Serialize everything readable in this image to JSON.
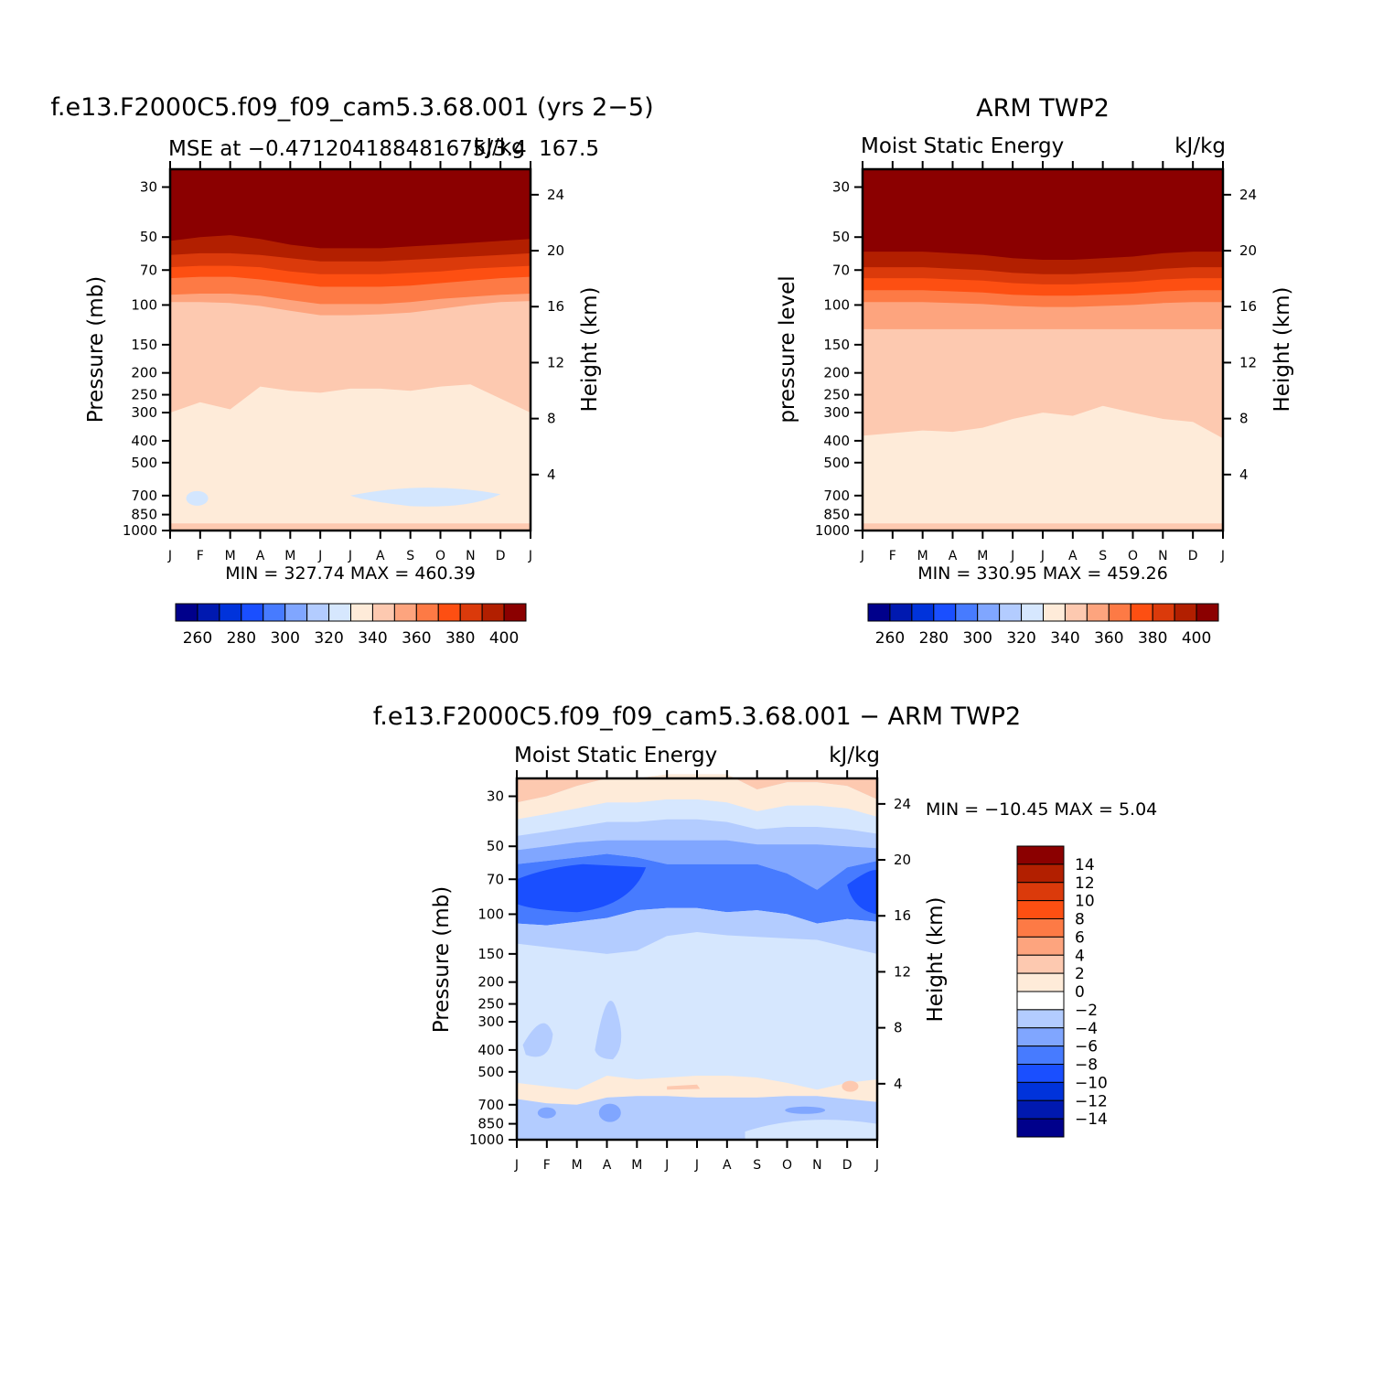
{
  "chart_data": [
    {
      "id": "model",
      "type": "heatmap",
      "title": "f.e13.F2000C5.f09_f09_cam5.3.68.001 (yrs 2−5)",
      "left_subtitle": "MSE at −0.471204188481675/3.4",
      "overlap_subtitle": "kJ/kg",
      "right_subtitle": "167.5",
      "ylabel": "Pressure (mb)",
      "ylabel_right": "Height (km)",
      "stats": "MIN = 327.74  MAX = 460.39",
      "x_months": [
        "J",
        "F",
        "M",
        "A",
        "M",
        "J",
        "J",
        "A",
        "S",
        "O",
        "N",
        "D",
        "J"
      ],
      "pressure_ticks": [
        30,
        50,
        70,
        100,
        150,
        200,
        250,
        300,
        400,
        500,
        700,
        850,
        1000
      ],
      "height_ticks_km": [
        24,
        20,
        16,
        12,
        8,
        4
      ],
      "colorbar_labels": [
        "260",
        "280",
        "300",
        "320",
        "340",
        "360",
        "380",
        "400"
      ],
      "contour_pressure_by_month": {
        "above_400": [
          52,
          50,
          49,
          51,
          54,
          56,
          56,
          56,
          55,
          54,
          53,
          52,
          51
        ],
        "above_380": [
          60,
          59,
          59,
          60,
          62,
          64,
          64,
          64,
          63,
          62,
          61,
          60,
          59
        ],
        "above_370": [
          68,
          67,
          67,
          68,
          71,
          73,
          73,
          73,
          72,
          71,
          69,
          68,
          67
        ],
        "above_360": [
          76,
          75,
          75,
          77,
          80,
          83,
          83,
          83,
          82,
          80,
          78,
          76,
          75
        ],
        "above_350": [
          90,
          89,
          89,
          91,
          95,
          99,
          99,
          99,
          97,
          94,
          92,
          90,
          89
        ],
        "above_340": [
          97,
          97,
          98,
          101,
          106,
          111,
          111,
          110,
          108,
          104,
          100,
          97,
          96
        ],
        "above_330": [
          300,
          270,
          290,
          230,
          240,
          245,
          235,
          235,
          240,
          230,
          225,
          260,
          300
        ]
      }
    },
    {
      "id": "obs",
      "type": "heatmap",
      "title": "ARM TWP2",
      "left_subtitle": "Moist Static Energy",
      "right_subtitle": "kJ/kg",
      "ylabel": "pressure level",
      "ylabel_right": "Height (km)",
      "stats": "MIN = 330.95  MAX = 459.26",
      "x_months": [
        "J",
        "F",
        "M",
        "A",
        "M",
        "J",
        "J",
        "A",
        "S",
        "O",
        "N",
        "D",
        "J"
      ],
      "pressure_ticks": [
        30,
        50,
        70,
        100,
        150,
        200,
        250,
        300,
        400,
        500,
        700,
        850,
        1000
      ],
      "height_ticks_km": [
        24,
        20,
        16,
        12,
        8,
        4
      ],
      "colorbar_labels": [
        "260",
        "280",
        "300",
        "320",
        "340",
        "360",
        "380",
        "400"
      ],
      "contour_pressure_by_month": {
        "above_400": [
          58,
          58,
          58,
          59,
          60,
          62,
          63,
          63,
          62,
          61,
          59,
          58,
          58
        ],
        "above_380": [
          68,
          68,
          68,
          69,
          70,
          72,
          73,
          73,
          72,
          71,
          69,
          68,
          68
        ],
        "above_370": [
          76,
          76,
          76,
          77,
          78,
          80,
          81,
          81,
          80,
          79,
          77,
          76,
          76
        ],
        "above_360": [
          86,
          86,
          86,
          87,
          88,
          90,
          91,
          91,
          90,
          89,
          87,
          86,
          86
        ],
        "above_350": [
          97,
          97,
          97,
          98,
          99,
          101,
          102,
          102,
          101,
          100,
          98,
          97,
          97
        ],
        "above_340": [
          128,
          128,
          128,
          128,
          128,
          128,
          128,
          128,
          128,
          128,
          128,
          128,
          128
        ],
        "above_330": [
          380,
          370,
          360,
          365,
          350,
          320,
          300,
          310,
          280,
          300,
          320,
          330,
          390
        ]
      }
    },
    {
      "id": "diff",
      "type": "heatmap",
      "title": "f.e13.F2000C5.f09_f09_cam5.3.68.001 − ARM TWP2",
      "left_subtitle": "Moist Static Energy",
      "right_subtitle": "kJ/kg",
      "ylabel": "Pressure (mb)",
      "ylabel_right": "Height (km)",
      "stats": "MIN = −10.45 MAX =    5.04",
      "x_months": [
        "J",
        "F",
        "M",
        "A",
        "M",
        "J",
        "J",
        "A",
        "S",
        "O",
        "N",
        "D",
        "J"
      ],
      "pressure_ticks": [
        30,
        50,
        70,
        100,
        150,
        200,
        250,
        300,
        400,
        500,
        700,
        850,
        1000
      ],
      "height_ticks_km": [
        24,
        20,
        16,
        12,
        8,
        4
      ],
      "colorbar_labels": [
        "14",
        "12",
        "10",
        "8",
        "6",
        "4",
        "2",
        "0",
        "−2",
        "−4",
        "−6",
        "−8",
        "−10",
        "−12",
        "−14"
      ],
      "contour_pressure_by_month": {
        "pos_top": [
          32,
          30,
          27,
          25,
          25,
          24,
          24,
          24,
          28,
          26,
          26,
          27,
          31
        ],
        "band_0": [
          38,
          36,
          34,
          32,
          32,
          31,
          31,
          32,
          35,
          33,
          33,
          34,
          37
        ],
        "band_m2": [
          45,
          43,
          41,
          39,
          39,
          38,
          38,
          39,
          42,
          41,
          41,
          42,
          44
        ],
        "band_m4": [
          52,
          50,
          48,
          47,
          47,
          47,
          47,
          47,
          49,
          49,
          49,
          50,
          51
        ],
        "band_m6_top": [
          60,
          58,
          56,
          54,
          56,
          60,
          60,
          60,
          60,
          66,
          78,
          62,
          58
        ],
        "band_m6_bot": [
          110,
          112,
          108,
          104,
          96,
          94,
          94,
          98,
          96,
          100,
          110,
          105,
          108
        ],
        "band_m4_bot": [
          135,
          140,
          145,
          150,
          145,
          125,
          120,
          124,
          126,
          128,
          130,
          140,
          150
        ],
        "pos_low_top": [
          560,
          580,
          600,
          520,
          540,
          530,
          520,
          520,
          530,
          560,
          600,
          560,
          540
        ],
        "pos_low_bot": [
          660,
          690,
          700,
          650,
          640,
          640,
          650,
          650,
          650,
          640,
          640,
          660,
          680
        ]
      }
    }
  ]
}
